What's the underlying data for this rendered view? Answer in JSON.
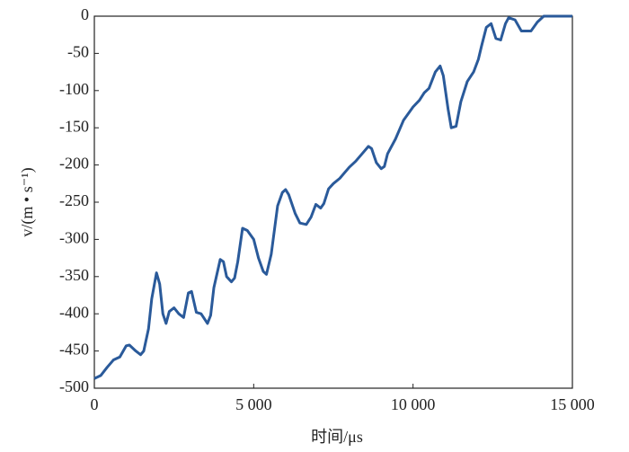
{
  "chart_data": {
    "type": "line",
    "x_label": "时间/μs",
    "y_label": "v/(m • s⁻¹)",
    "xlim": [
      0,
      15000
    ],
    "xticks": [
      0,
      {
        "value": 5000,
        "label": "5 000"
      },
      {
        "value": 10000,
        "label": "10 000"
      },
      {
        "value": 15000,
        "label": "15 000"
      }
    ],
    "ylim": [
      -500,
      0
    ],
    "yticks": [
      0,
      -50,
      -100,
      -150,
      -200,
      -250,
      -300,
      -350,
      -400,
      -450,
      -500
    ],
    "grid": false,
    "series": [
      {
        "color": "#2a5a9a",
        "x": [
          0,
          200,
          400,
          600,
          800,
          1000,
          1100,
          1300,
          1450,
          1550,
          1700,
          1800,
          1950,
          2050,
          2150,
          2250,
          2350,
          2500,
          2650,
          2800,
          2950,
          3050,
          3200,
          3350,
          3550,
          3650,
          3750,
          3950,
          4050,
          4150,
          4300,
          4400,
          4500,
          4650,
          4800,
          5000,
          5150,
          5300,
          5400,
          5550,
          5750,
          5900,
          6000,
          6100,
          6300,
          6450,
          6650,
          6800,
          6950,
          7100,
          7200,
          7350,
          7500,
          7700,
          8000,
          8200,
          8400,
          8600,
          8700,
          8850,
          9000,
          9100,
          9200,
          9450,
          9700,
          9900,
          10000,
          10200,
          10350,
          10500,
          10700,
          10850,
          10950,
          11100,
          11200,
          11350,
          11500,
          11700,
          11900,
          12050,
          12150,
          12300,
          12450,
          12600,
          12750,
          12900,
          13000,
          13200,
          13400,
          13700,
          13900,
          14100,
          14500,
          15000
        ],
        "values": [
          -487,
          -483,
          -472,
          -462,
          -458,
          -443,
          -442,
          -450,
          -455,
          -450,
          -420,
          -380,
          -345,
          -360,
          -400,
          -413,
          -397,
          -392,
          -400,
          -405,
          -372,
          -370,
          -398,
          -400,
          -413,
          -402,
          -365,
          -327,
          -330,
          -350,
          -357,
          -352,
          -330,
          -285,
          -288,
          -300,
          -325,
          -343,
          -347,
          -320,
          -255,
          -237,
          -233,
          -240,
          -265,
          -278,
          -280,
          -270,
          -253,
          -258,
          -252,
          -232,
          -225,
          -218,
          -203,
          -195,
          -185,
          -175,
          -178,
          -197,
          -205,
          -202,
          -185,
          -165,
          -140,
          -128,
          -122,
          -113,
          -103,
          -97,
          -75,
          -67,
          -80,
          -125,
          -150,
          -148,
          -115,
          -88,
          -75,
          -58,
          -40,
          -15,
          -10,
          -30,
          -32,
          -10,
          -2,
          -5,
          -20,
          -20,
          -8,
          0,
          0,
          0
        ]
      }
    ]
  }
}
